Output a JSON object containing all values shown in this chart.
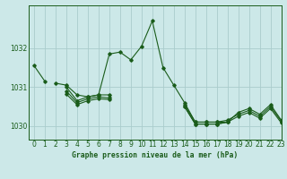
{
  "title": "Graphe pression niveau de la mer (hPa)",
  "bg_color": "#cce8e8",
  "grid_color": "#aacccc",
  "line_color": "#1a5c1a",
  "xlim": [
    -0.5,
    23
  ],
  "ylim": [
    1029.65,
    1033.1
  ],
  "yticks": [
    1030,
    1031,
    1032
  ],
  "xticks": [
    0,
    1,
    2,
    3,
    4,
    5,
    6,
    7,
    8,
    9,
    10,
    11,
    12,
    13,
    14,
    15,
    16,
    17,
    18,
    19,
    20,
    21,
    22,
    23
  ],
  "series": [
    [
      1031.55,
      1031.15,
      null,
      null,
      null,
      null,
      null,
      null,
      null,
      null,
      null,
      null,
      null,
      null,
      null,
      null,
      null,
      null,
      null,
      null,
      null,
      null,
      null,
      null
    ],
    [
      null,
      null,
      1031.1,
      1031.05,
      1030.8,
      1030.75,
      1030.8,
      1031.85,
      1031.9,
      1031.7,
      1032.05,
      1032.7,
      1031.5,
      1031.05,
      1030.6,
      1030.1,
      1030.1,
      1030.1,
      1030.1,
      null,
      null,
      null,
      null,
      null
    ],
    [
      null,
      null,
      null,
      1031.0,
      1030.65,
      1030.75,
      1030.8,
      1030.8,
      null,
      null,
      null,
      null,
      null,
      null,
      1030.5,
      1030.05,
      1030.05,
      1030.05,
      1030.1,
      1030.35,
      1030.45,
      1030.3,
      1030.55,
      1030.15
    ],
    [
      null,
      null,
      null,
      1030.9,
      1030.6,
      1030.7,
      1030.75,
      1030.72,
      null,
      null,
      null,
      null,
      null,
      null,
      1030.55,
      1030.1,
      1030.1,
      1030.1,
      1030.15,
      1030.3,
      1030.4,
      1030.25,
      1030.5,
      1030.12
    ],
    [
      null,
      null,
      null,
      1030.82,
      1030.55,
      1030.65,
      1030.7,
      1030.68,
      null,
      null,
      null,
      null,
      null,
      null,
      1030.5,
      1030.05,
      1030.05,
      1030.05,
      1030.1,
      1030.25,
      1030.35,
      1030.2,
      1030.45,
      1030.08
    ]
  ]
}
